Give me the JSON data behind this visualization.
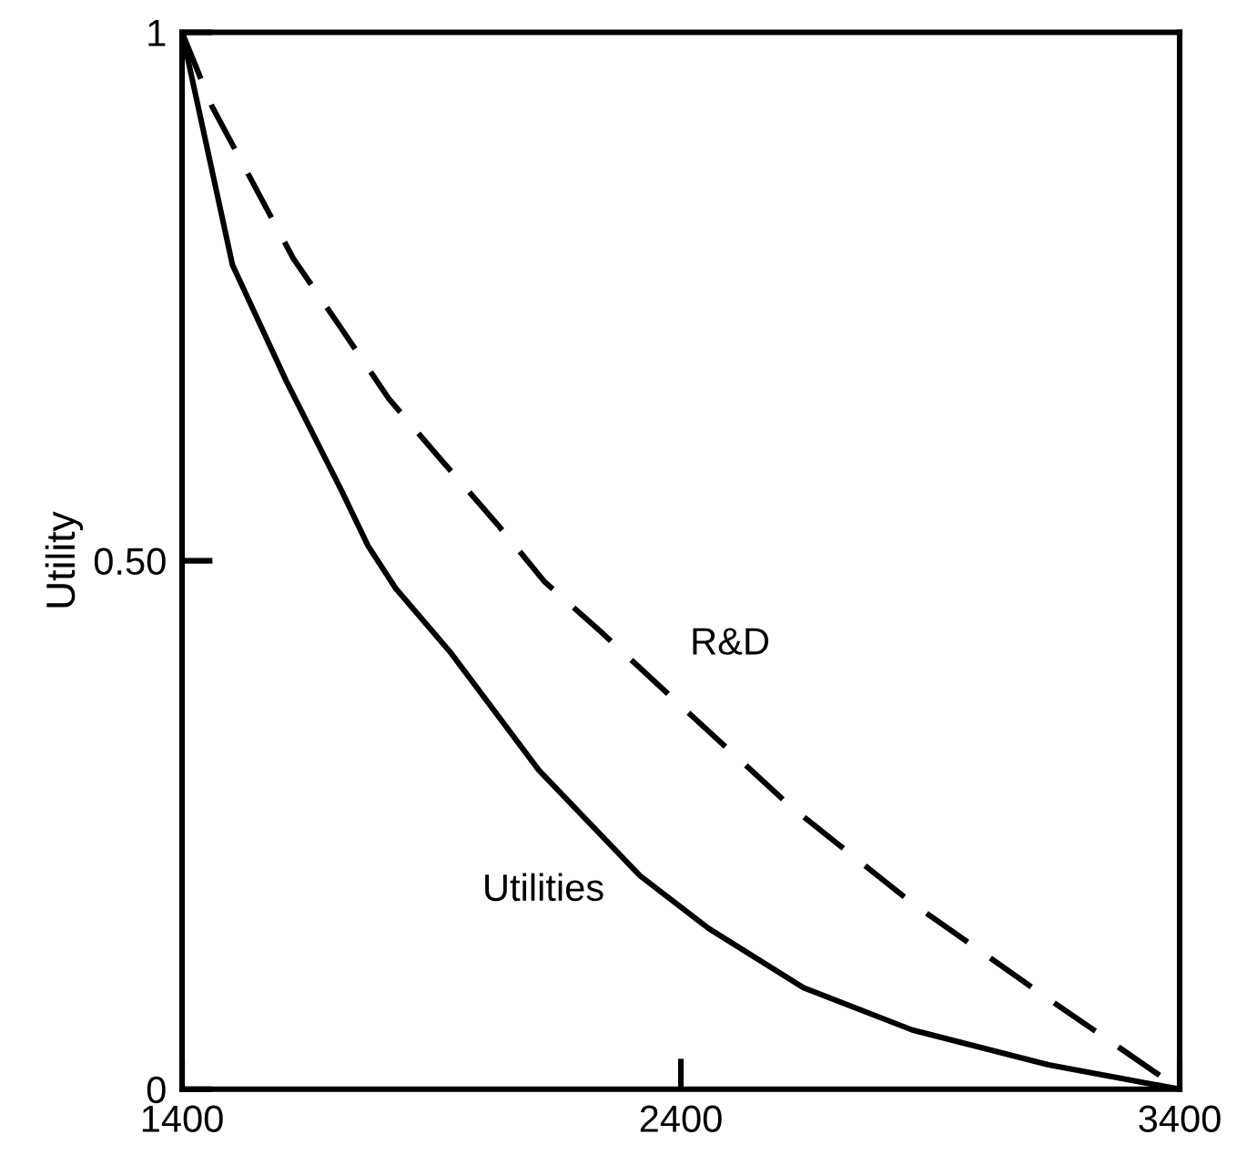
{
  "chart_data": {
    "type": "line",
    "ylabel": "Utility",
    "xlim": [
      1400,
      3400
    ],
    "ylim": [
      0,
      1
    ],
    "xticks": [
      1400,
      2400,
      3400
    ],
    "yticks": [
      0,
      {
        "value": 0.5,
        "label": "0.50"
      },
      1
    ],
    "grid": false,
    "marker": "none",
    "series": [
      {
        "name": "Utilities",
        "color": "#000000",
        "line_style": "solid",
        "x": [
          1400,
          1501,
          1609,
          1719,
          1773,
          1828,
          1937,
          2115,
          2318,
          2456,
          2646,
          2864,
          3137,
          3400
        ],
        "values": [
          1,
          0.78,
          0.67,
          0.567,
          0.514,
          0.474,
          0.414,
          0.302,
          0.202,
          0.152,
          0.096,
          0.056,
          0.023,
          0
        ]
      },
      {
        "name": "R&D",
        "color": "#000000",
        "line_style": "dashed",
        "x": [
          1400,
          1460,
          1528,
          1623,
          1719,
          1815,
          1924,
          2033,
          2127,
          2237,
          2388,
          2619,
          2864,
          3123,
          3400
        ],
        "values": [
          1,
          0.93,
          0.87,
          0.786,
          0.72,
          0.653,
          0.593,
          0.534,
          0.48,
          0.434,
          0.368,
          0.268,
          0.176,
          0.09,
          0
        ]
      }
    ]
  }
}
